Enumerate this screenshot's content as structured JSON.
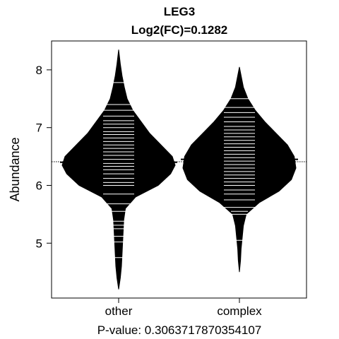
{
  "chart_data": {
    "type": "beanplot",
    "title": "LEG3",
    "subtitle": "Log2(FC)=0.1282",
    "ylabel": "Abundance",
    "xlabel": "",
    "footer": "P-value: 0.306371787035410​7",
    "categories": [
      "other",
      "complex"
    ],
    "ylim": [
      4.05,
      8.5
    ],
    "yticks": [
      5,
      6,
      7,
      8
    ],
    "overall_mean": 6.41,
    "grid": false,
    "legend": "none",
    "colors": {
      "bean": "#000000",
      "lines": "#ffffff",
      "axis": "#000000",
      "background": "#ffffff"
    },
    "beans": [
      {
        "name": "other",
        "mean": 6.4,
        "min": 4.2,
        "max": 8.35,
        "density": [
          [
            4.2,
            0.0
          ],
          [
            4.4,
            0.03
          ],
          [
            4.6,
            0.05
          ],
          [
            4.8,
            0.06
          ],
          [
            5.0,
            0.07
          ],
          [
            5.2,
            0.08
          ],
          [
            5.4,
            0.09
          ],
          [
            5.6,
            0.12
          ],
          [
            5.8,
            0.3
          ],
          [
            6.0,
            0.7
          ],
          [
            6.2,
            0.92
          ],
          [
            6.35,
            1.0
          ],
          [
            6.5,
            0.95
          ],
          [
            6.7,
            0.75
          ],
          [
            6.9,
            0.55
          ],
          [
            7.1,
            0.4
          ],
          [
            7.3,
            0.25
          ],
          [
            7.5,
            0.15
          ],
          [
            7.7,
            0.1
          ],
          [
            7.9,
            0.06
          ],
          [
            8.1,
            0.03
          ],
          [
            8.35,
            0.0
          ]
        ],
        "values": [
          4.75,
          5.02,
          5.12,
          5.25,
          5.31,
          5.38,
          5.55,
          5.68,
          5.85,
          6.0,
          6.05,
          6.12,
          6.2,
          6.27,
          6.33,
          6.38,
          6.45,
          6.52,
          6.58,
          6.64,
          6.7,
          6.76,
          6.82,
          6.88,
          6.93,
          7.0,
          7.06,
          7.12,
          7.2,
          7.3,
          7.4,
          7.78
        ]
      },
      {
        "name": "complex",
        "mean": 6.45,
        "min": 4.5,
        "max": 8.05,
        "density": [
          [
            4.5,
            0.0
          ],
          [
            4.7,
            0.02
          ],
          [
            4.9,
            0.03
          ],
          [
            5.1,
            0.05
          ],
          [
            5.3,
            0.07
          ],
          [
            5.5,
            0.12
          ],
          [
            5.7,
            0.35
          ],
          [
            5.9,
            0.7
          ],
          [
            6.1,
            0.92
          ],
          [
            6.3,
            1.0
          ],
          [
            6.5,
            0.97
          ],
          [
            6.7,
            0.85
          ],
          [
            6.9,
            0.65
          ],
          [
            7.1,
            0.45
          ],
          [
            7.3,
            0.28
          ],
          [
            7.5,
            0.15
          ],
          [
            7.7,
            0.07
          ],
          [
            7.9,
            0.03
          ],
          [
            8.05,
            0.0
          ]
        ],
        "values": [
          5.05,
          5.5,
          5.55,
          5.62,
          5.75,
          5.85,
          5.92,
          6.0,
          6.06,
          6.12,
          6.18,
          6.24,
          6.3,
          6.36,
          6.42,
          6.48,
          6.54,
          6.6,
          6.66,
          6.72,
          6.78,
          6.84,
          6.9,
          6.96,
          7.02,
          7.1,
          7.18,
          7.26,
          7.35,
          7.5
        ]
      }
    ]
  }
}
